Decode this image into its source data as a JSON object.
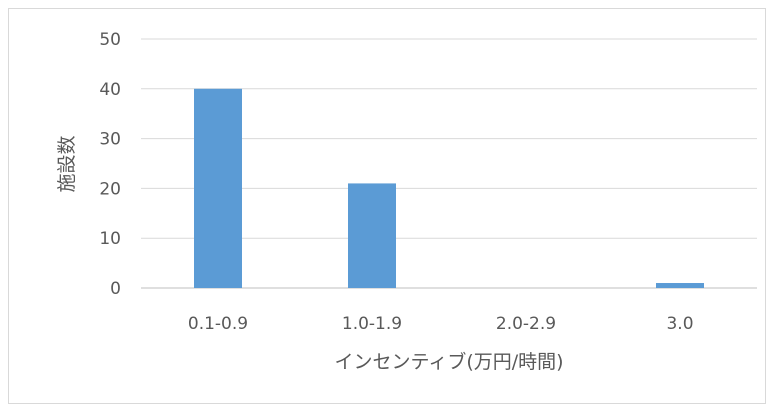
{
  "chart_data": {
    "type": "bar",
    "categories": [
      "0.1-0.9",
      "1.0-1.9",
      "2.0-2.9",
      "3.0"
    ],
    "values": [
      40,
      21,
      0,
      1
    ],
    "xlabel": "インセンティブ(万円/時間)",
    "ylabel": "施設数",
    "ylim": [
      0,
      50
    ],
    "yticks": [
      0,
      10,
      20,
      30,
      40,
      50
    ],
    "grid": true,
    "bar_color": "#5b9bd5",
    "grid_color": "#d9d9d9",
    "axis_color": "#bfbfbf"
  }
}
